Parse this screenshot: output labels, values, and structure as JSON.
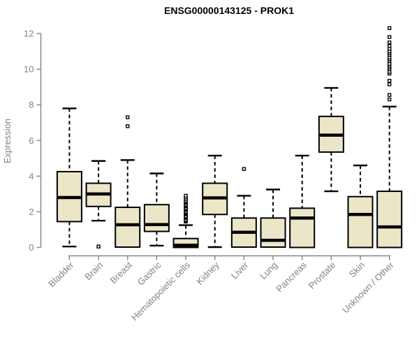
{
  "chart_data": {
    "type": "boxplot",
    "title": "ENSG00000143125 - PROK1",
    "xlabel": "",
    "ylabel": "Expression",
    "ylim": [
      0,
      12
    ],
    "yticks": [
      0,
      2,
      4,
      6,
      8,
      10,
      12
    ],
    "grid": false,
    "legend": "none",
    "categories": [
      "Bladder",
      "Brain",
      "Breast",
      "Gastric",
      "Hematopoietic cells",
      "Kidney",
      "Liver",
      "Lung",
      "Pancreas",
      "Prostate",
      "Skin",
      "Unknown / Other"
    ],
    "boxes": [
      {
        "category": "Bladder",
        "whisker_low": 0.05,
        "q1": 1.45,
        "median": 2.8,
        "q3": 4.25,
        "whisker_high": 7.8,
        "outliers": []
      },
      {
        "category": "Brain",
        "whisker_low": 1.5,
        "q1": 2.3,
        "median": 3.0,
        "q3": 3.6,
        "whisker_high": 4.85,
        "outliers": [
          0.05
        ]
      },
      {
        "category": "Breast",
        "whisker_low": 0.02,
        "q1": 0.02,
        "median": 1.27,
        "q3": 2.25,
        "whisker_high": 4.9,
        "outliers": [
          6.8,
          7.3
        ]
      },
      {
        "category": "Gastric",
        "whisker_low": 0.1,
        "q1": 0.9,
        "median": 1.28,
        "q3": 2.4,
        "whisker_high": 4.15,
        "outliers": []
      },
      {
        "category": "Hematopoietic cells",
        "whisker_low": 0.0,
        "q1": 0.0,
        "median": 0.12,
        "q3": 0.5,
        "whisker_high": 1.25,
        "outliers": [
          1.45,
          1.5,
          1.55,
          1.65,
          1.7,
          1.75,
          1.85,
          1.9,
          1.95,
          2.0,
          2.1,
          2.15,
          2.2,
          2.3,
          2.35,
          2.4,
          2.5,
          2.55,
          2.6,
          2.7,
          2.8,
          2.9
        ]
      },
      {
        "category": "Kidney",
        "whisker_low": 0.02,
        "q1": 1.85,
        "median": 2.78,
        "q3": 3.6,
        "whisker_high": 5.15,
        "outliers": []
      },
      {
        "category": "Liver",
        "whisker_low": 0.02,
        "q1": 0.02,
        "median": 0.85,
        "q3": 1.65,
        "whisker_high": 2.9,
        "outliers": [
          4.4
        ]
      },
      {
        "category": "Lung",
        "whisker_low": 0.02,
        "q1": 0.02,
        "median": 0.4,
        "q3": 1.65,
        "whisker_high": 3.25,
        "outliers": []
      },
      {
        "category": "Pancreas",
        "whisker_low": 0.0,
        "q1": 0.0,
        "median": 1.65,
        "q3": 2.2,
        "whisker_high": 5.15,
        "outliers": []
      },
      {
        "category": "Prostate",
        "whisker_low": 3.15,
        "q1": 5.35,
        "median": 6.3,
        "q3": 7.35,
        "whisker_high": 8.95,
        "outliers": []
      },
      {
        "category": "Skin",
        "whisker_low": 0.0,
        "q1": 0.0,
        "median": 1.85,
        "q3": 2.85,
        "whisker_high": 4.6,
        "outliers": []
      },
      {
        "category": "Unknown / Other",
        "whisker_low": 0.0,
        "q1": 0.0,
        "median": 1.15,
        "q3": 3.15,
        "whisker_high": 7.9,
        "outliers": [
          8.3,
          8.55,
          9.15,
          9.35,
          9.75,
          9.85,
          10.0,
          10.1,
          10.2,
          10.3,
          10.45,
          10.55,
          10.65,
          10.8,
          10.9,
          11.0,
          11.15,
          11.3,
          11.5,
          11.8,
          12.3
        ]
      }
    ],
    "colors": {
      "box_fill": "#ece6c9",
      "box_stroke": "#000000",
      "median": "#000000",
      "whisker": "#000000",
      "outlier": "#000000",
      "axis": "#848484",
      "tick_label": "#828282",
      "title": "#000000",
      "background": "#ffffff"
    }
  }
}
